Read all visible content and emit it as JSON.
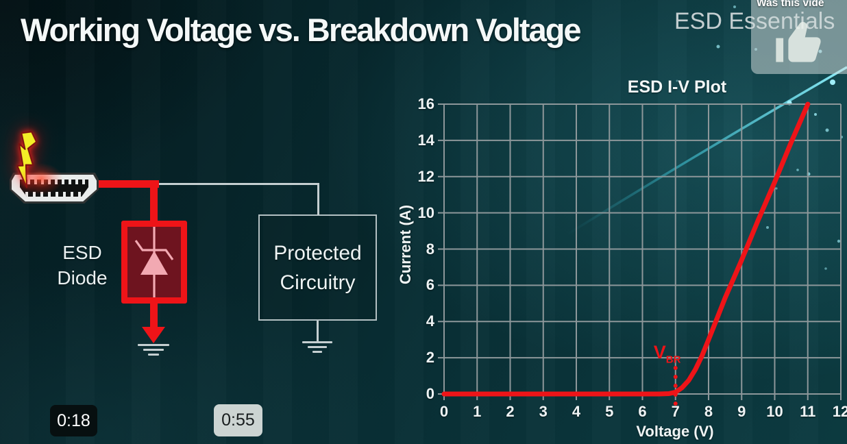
{
  "colors": {
    "accent_red": "#ee1418",
    "diode_fill": "#6e141f",
    "wire_gray": "#c5cfd1",
    "bolt_yellow": "#f3ee27",
    "arc_cyan": "#7ce8f4",
    "grid_gray": "#8d979a",
    "watermark_gray": "#c4ced0"
  },
  "header": {
    "title": "Working Voltage vs. Breakdown Voltage",
    "watermark": "ESD Essentials"
  },
  "feedback_popup": {
    "question": "Was this vide",
    "icon": "thumbs-up-icon"
  },
  "diagram": {
    "strike_icon": "lightning-icon",
    "connector_icon": "hdmi-connector-icon",
    "diode_icon": "zener-diode-icon",
    "ground_icon": "ground-icon",
    "esd_diode": {
      "label_lines": [
        "ESD",
        "Diode"
      ]
    },
    "protected": {
      "label_lines": [
        "Protected",
        "Circuitry"
      ]
    }
  },
  "timestamps": {
    "current": "0:18",
    "next": "0:55"
  },
  "chart_data": {
    "type": "line",
    "title": "ESD I-V Plot",
    "xlabel": "Voltage (V)",
    "ylabel": "Current (A)",
    "xlim": [
      0,
      12
    ],
    "ylim": [
      0,
      16
    ],
    "x_ticks": [
      0,
      1,
      2,
      3,
      4,
      5,
      6,
      7,
      8,
      9,
      10,
      11,
      12
    ],
    "y_ticks": [
      0,
      2,
      4,
      6,
      8,
      10,
      12,
      14,
      16
    ],
    "grid": true,
    "legend": "none",
    "series": [
      {
        "name": "I-V curve",
        "color": "#ee1418",
        "x": [
          0,
          1,
          2,
          3,
          4,
          5,
          6,
          6.5,
          6.8,
          7.0,
          7.2,
          7.4,
          7.6,
          7.8,
          8.0,
          8.25,
          8.5,
          9.0,
          9.5,
          10.0,
          10.5,
          11.0
        ],
        "y": [
          0,
          0,
          0,
          0,
          0,
          0,
          0,
          0,
          0.02,
          0.1,
          0.35,
          0.75,
          1.35,
          2.1,
          3.0,
          4.15,
          5.3,
          7.4,
          9.6,
          11.7,
          13.9,
          16.0
        ]
      }
    ],
    "annotations": [
      {
        "label": "V",
        "label_subscript": "BR",
        "x": 7,
        "style": "dotted-vertical-line",
        "color": "#ee1418"
      }
    ]
  }
}
